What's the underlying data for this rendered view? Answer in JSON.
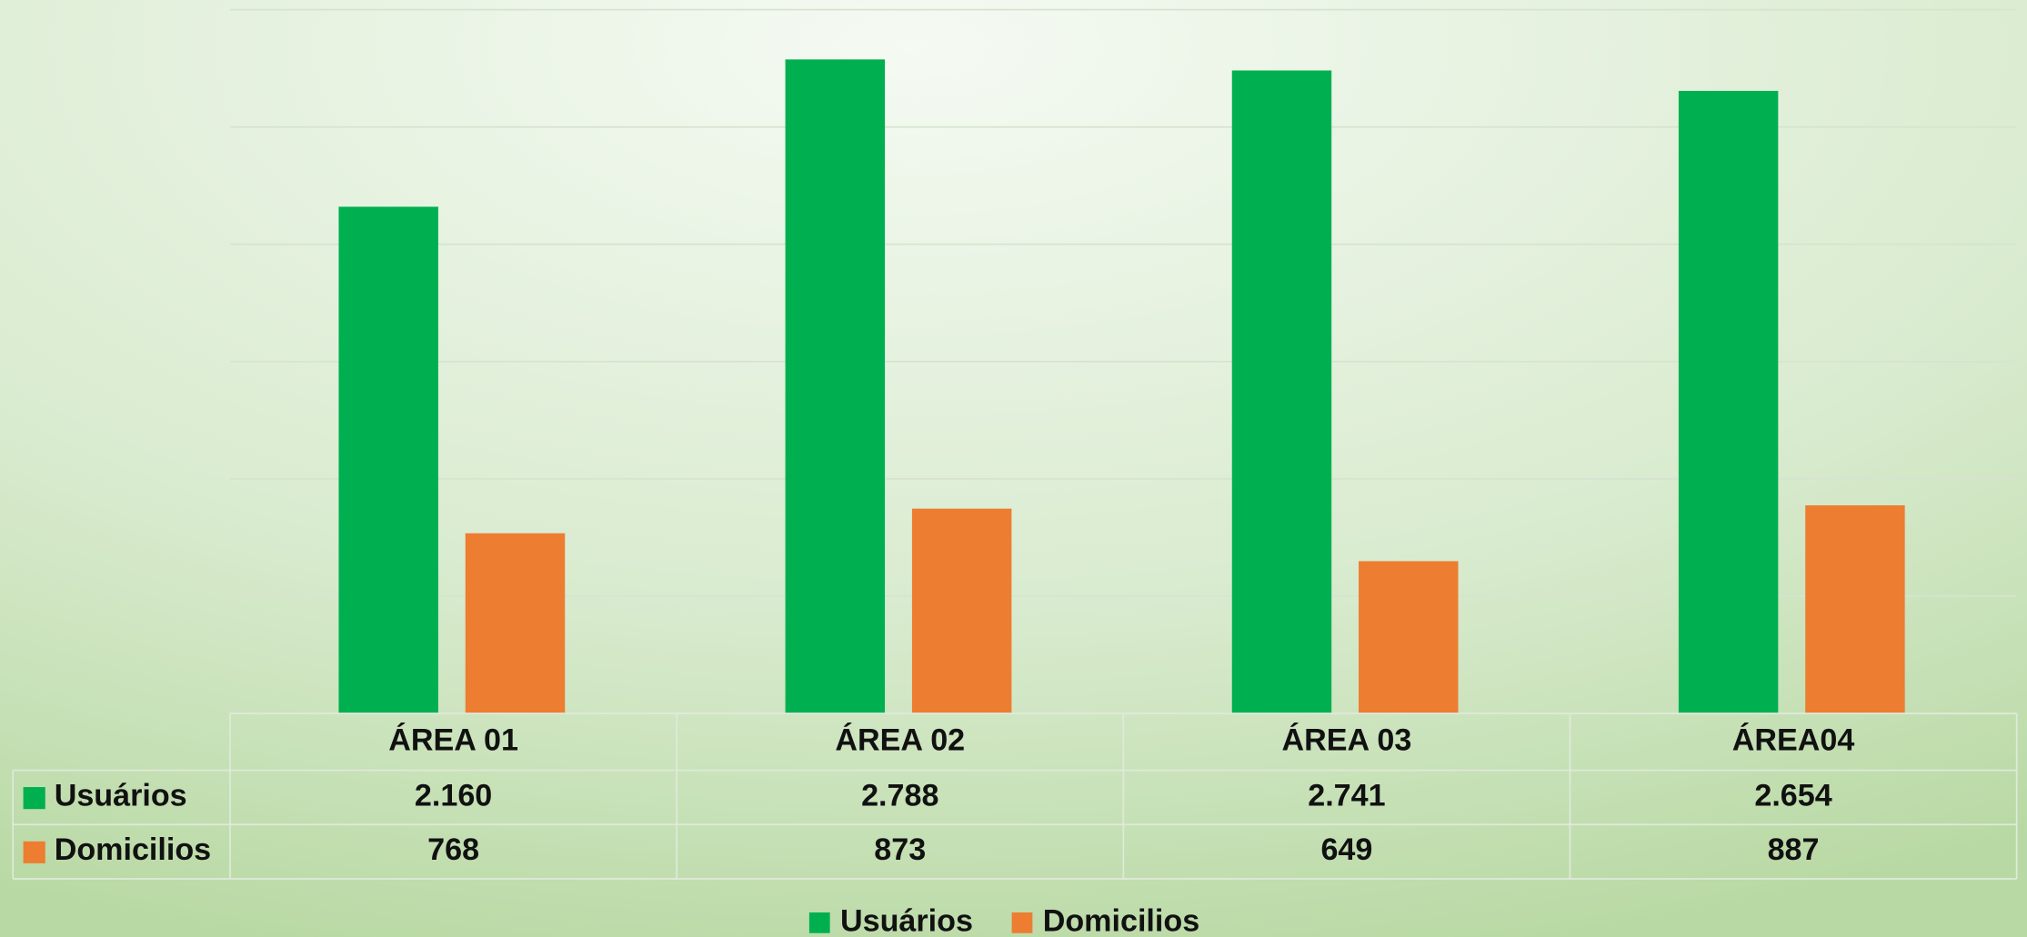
{
  "chart_data": {
    "type": "bar",
    "categories": [
      "ÁREA 01",
      "ÁREA 02",
      "ÁREA 03",
      "ÁREA04"
    ],
    "series": [
      {
        "name": "Usuários",
        "color": "#00b050",
        "values": [
          2160,
          2788,
          2741,
          2654
        ],
        "value_labels": [
          "2.160",
          "2.788",
          "2.741",
          "2.654"
        ]
      },
      {
        "name": "Domicilios",
        "color": "#ed7d31",
        "values": [
          768,
          873,
          649,
          887
        ]
      }
    ],
    "ylim": [
      0,
      3000
    ],
    "yticks": [
      0,
      500,
      1000,
      1500,
      2000,
      2500,
      3000
    ],
    "grid": true
  }
}
